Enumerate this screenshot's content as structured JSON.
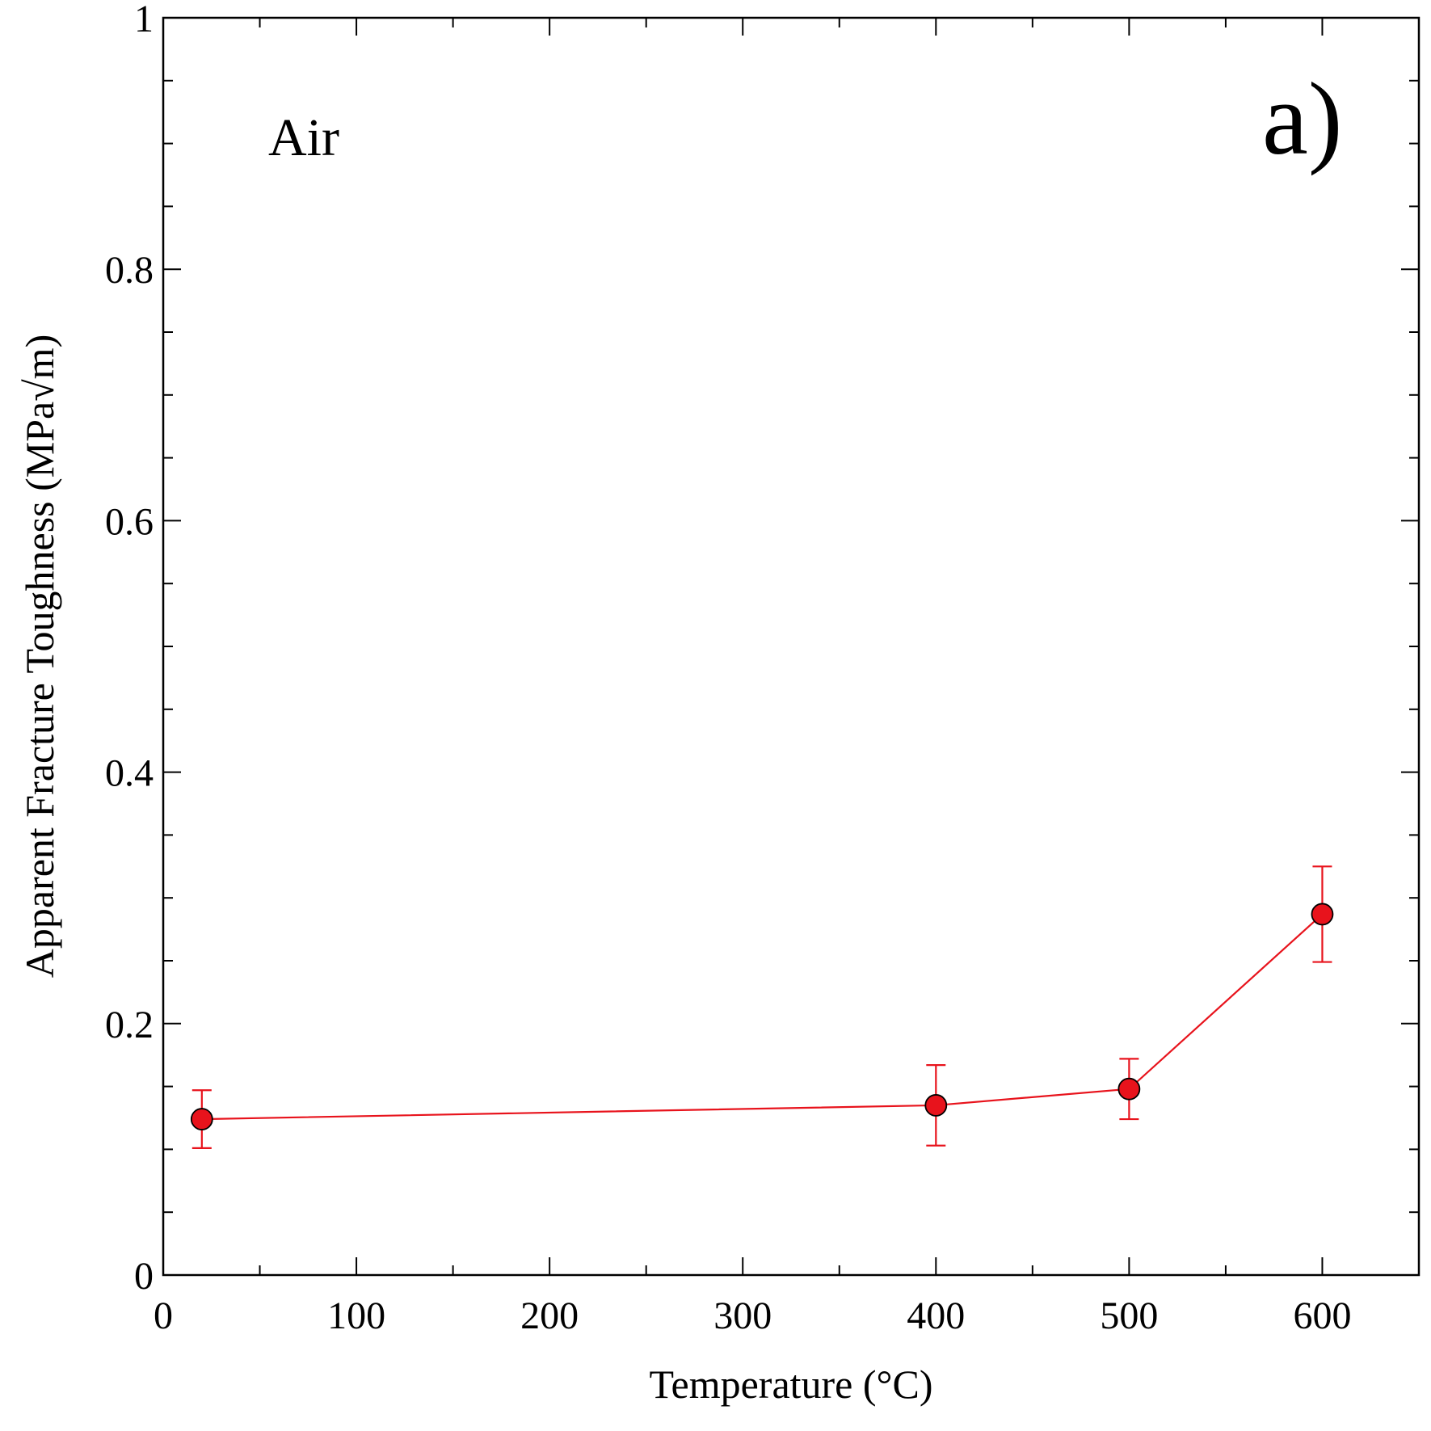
{
  "chart_data": {
    "type": "line",
    "xlabel": "Temperature (°C)",
    "ylabel": "Apparent Fracture Toughness (MPa√m)",
    "xlim": [
      0,
      650
    ],
    "ylim": [
      0,
      1
    ],
    "x_ticks": [
      0,
      100,
      200,
      300,
      400,
      500,
      600
    ],
    "x_tick_labels": [
      "0",
      "100",
      "200",
      "300",
      "400",
      "500",
      "600"
    ],
    "x_minor_step": 50,
    "y_ticks": [
      0,
      0.2,
      0.4,
      0.6,
      0.8,
      1
    ],
    "y_tick_labels": [
      "0",
      "0.2",
      "0.4",
      "0.6",
      "0.8",
      "1"
    ],
    "y_minor_step": 0.05,
    "grid": false,
    "annotations": [
      "Air",
      "a)"
    ],
    "series": [
      {
        "color": "#e8131c",
        "marker": "circle",
        "x": [
          20,
          400,
          500,
          600
        ],
        "y": [
          0.124,
          0.135,
          0.148,
          0.287
        ],
        "error": [
          0.023,
          0.032,
          0.024,
          0.038
        ]
      }
    ]
  }
}
